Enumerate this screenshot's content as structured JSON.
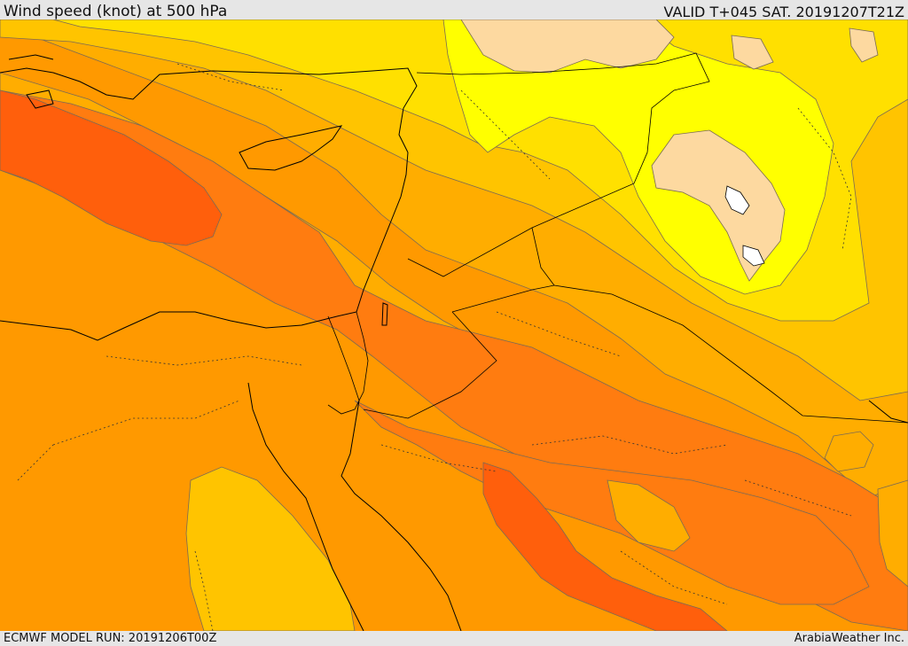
{
  "header": {
    "title": "Wind speed (knot) at 500 hPa",
    "valid_time": "VALID T+045 SAT. 20191207T21Z"
  },
  "footer": {
    "model_run": "ECMWF MODEL RUN: 20191206T00Z",
    "credit": "ArabiaWeather Inc."
  },
  "map": {
    "field": "wind speed",
    "level": "500 hPa",
    "colors": {
      "light_peach": "#fdd9a0",
      "bright_yellow": "#ffff00",
      "gold": "#ffe000",
      "amber": "#ffc400",
      "light_orange": "#ffad00",
      "orange": "#ff9900",
      "dark_orange": "#ff7c10",
      "red_orange": "#ff5f0c",
      "contour": "#7a6a55",
      "coast": "#000000"
    }
  }
}
